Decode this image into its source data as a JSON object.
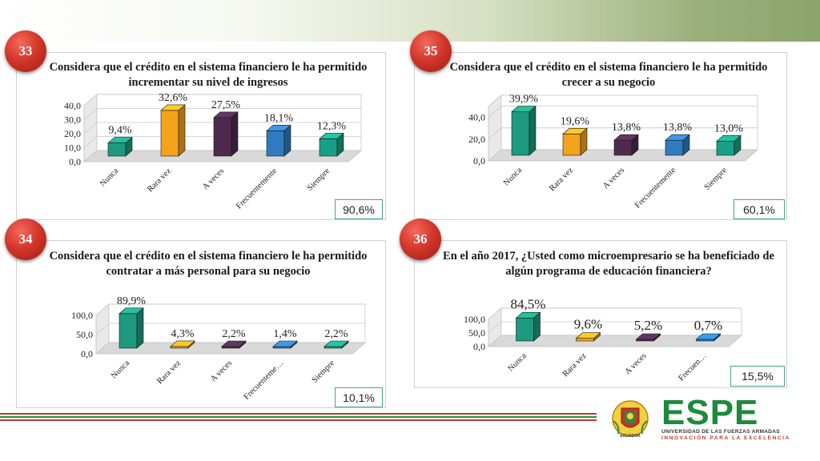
{
  "badges": {
    "b33": "33",
    "b35": "35",
    "b34": "34",
    "b36": "36"
  },
  "percent_boxes": {
    "p33": "90,6%",
    "p35": "60,1%",
    "p34": "10,1%",
    "p36": "15,5%"
  },
  "logo": {
    "name": "ESPE",
    "line1": "UNIVERSIDAD DE LAS FUERZAS ARMADAS",
    "line2": "INNOVACIÓN PARA LA EXCELENCIA",
    "shield_text": "ECUADOR"
  },
  "colors": {
    "teal": "#1d9a80",
    "orange": "#f5a21b",
    "purple": "#4e2a4e",
    "blue": "#2e7bbd",
    "green": "#17a085",
    "badge_red": "#d4372a",
    "espe_green": "#1e8a3b"
  },
  "chart_data": [
    {
      "id": "c33",
      "type": "bar",
      "title": "Considera que el crédito en el sistema financiero le ha permitido incrementar su nivel de ingresos",
      "categories": [
        "Nunca",
        "Rara vez",
        "A veces",
        "Frecuentemente",
        "Siempre"
      ],
      "values": [
        9.4,
        32.6,
        27.5,
        18.1,
        12.3
      ],
      "value_labels": [
        "9,4%",
        "32,6%",
        "27,5%",
        "18,1%",
        "12,3%"
      ],
      "y_ticks": [
        "0,0",
        "10,0",
        "20,0",
        "30,0",
        "40,0"
      ],
      "y_tick_values": [
        0,
        10,
        20,
        30,
        40
      ],
      "ylim": [
        0,
        40
      ],
      "bar_colors": [
        "#1d9a80",
        "#f5a21b",
        "#4e2a4e",
        "#2e7bbd",
        "#17a085"
      ],
      "grid": true
    },
    {
      "id": "c35",
      "type": "bar",
      "title": "Considera que el crédito en el sistema financiero le ha permitido crecer a su negocio",
      "categories": [
        "Nunca",
        "Rara vez",
        "A veces",
        "Frecuentemente",
        "Siempre"
      ],
      "values": [
        39.9,
        19.6,
        13.8,
        13.8,
        13.0
      ],
      "value_labels": [
        "39,9%",
        "19,6%",
        "13,8%",
        "13,8%",
        "13,0%"
      ],
      "y_ticks": [
        "0,0",
        "20,0",
        "40,0"
      ],
      "y_tick_values": [
        0,
        20,
        40
      ],
      "ylim": [
        0,
        50
      ],
      "bar_colors": [
        "#1d9a80",
        "#f5a21b",
        "#4e2a4e",
        "#2e7bbd",
        "#17a085"
      ],
      "grid": true
    },
    {
      "id": "c34",
      "type": "bar",
      "title": "Considera que el crédito en el sistema financiero le ha permitido contratar a más personal para su negocio",
      "categories": [
        "Nunca",
        "Rara vez",
        "A veces",
        "Frecuenteme…",
        "Siempre"
      ],
      "values": [
        89.9,
        4.3,
        2.2,
        1.4,
        2.2
      ],
      "value_labels": [
        "89,9%",
        "4,3%",
        "2,2%",
        "1,4%",
        "2,2%"
      ],
      "y_ticks": [
        "0,0",
        "50,0",
        "100,0"
      ],
      "y_tick_values": [
        0,
        50,
        100
      ],
      "ylim": [
        0,
        100
      ],
      "bar_colors": [
        "#1d9a80",
        "#f5a21b",
        "#4e2a4e",
        "#2e7bbd",
        "#17a085"
      ],
      "grid": true
    },
    {
      "id": "c36",
      "type": "bar",
      "title": "En el año 2017, ¿Usted como microempresario se ha beneficiado de algún programa de educación financiera?",
      "categories": [
        "Nunca",
        "Rara vez",
        "A veces",
        "Frecuen…"
      ],
      "values": [
        84.5,
        9.6,
        5.2,
        0.7
      ],
      "value_labels": [
        "84,5%",
        "9,6%",
        "5,2%",
        "0,7%"
      ],
      "y_ticks": [
        "0,0",
        "50,0",
        "100,0"
      ],
      "y_tick_values": [
        0,
        50,
        100
      ],
      "ylim": [
        0,
        100
      ],
      "bar_colors": [
        "#1d9a80",
        "#f5a21b",
        "#4e2a4e",
        "#2e7bbd"
      ],
      "grid": true
    }
  ]
}
